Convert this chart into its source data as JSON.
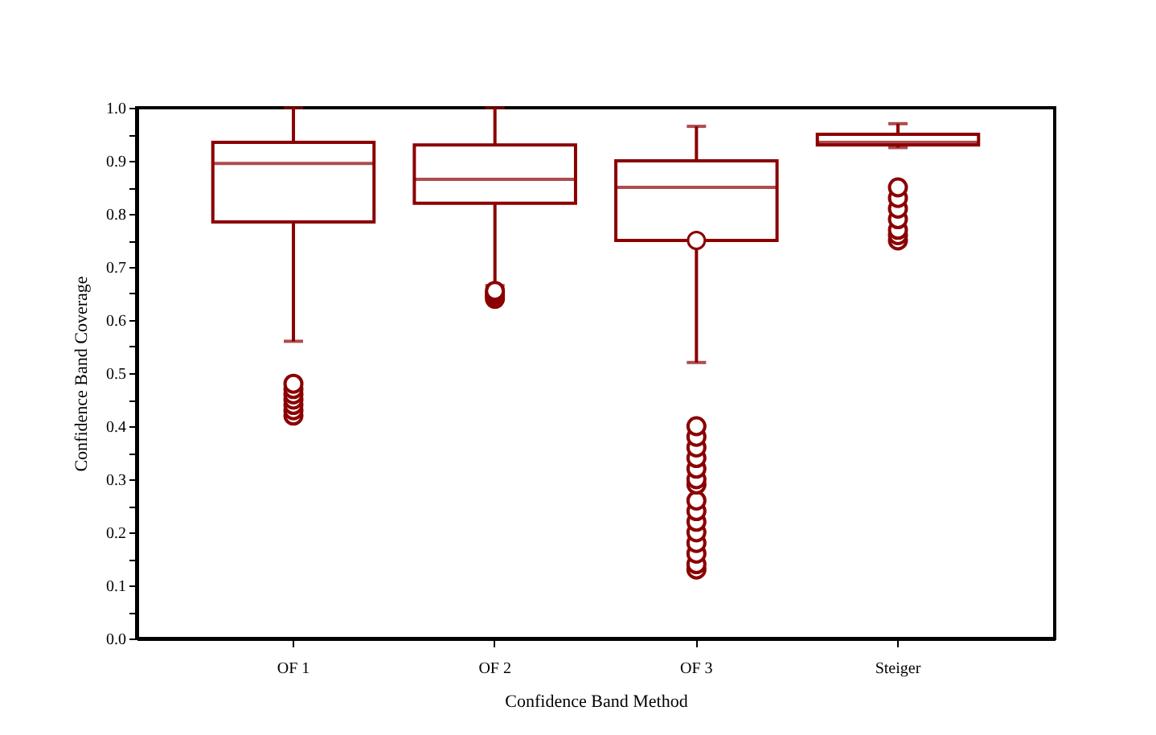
{
  "chart_data": {
    "type": "box",
    "xlabel": "Confidence Band Method",
    "ylabel": "Confidence Band Coverage",
    "categories": [
      "OF 1",
      "OF 2",
      "OF 3",
      "Steiger"
    ],
    "color": "#8b0000",
    "boxes": [
      {
        "low": 0.56,
        "q1": 0.785,
        "median": 0.895,
        "q3": 0.935,
        "high": 1.0,
        "outliers": [
          0.42,
          0.43,
          0.44,
          0.45,
          0.46,
          0.47,
          0.48
        ]
      },
      {
        "low": 0.665,
        "q1": 0.82,
        "median": 0.865,
        "q3": 0.93,
        "high": 1.0,
        "outliers": [
          0.64,
          0.645,
          0.65,
          0.655
        ]
      },
      {
        "low": 0.52,
        "q1": 0.75,
        "median": 0.85,
        "q3": 0.9,
        "high": 0.965,
        "mean": 0.75,
        "outliers": [
          0.13,
          0.14,
          0.16,
          0.18,
          0.2,
          0.22,
          0.24,
          0.26,
          0.29,
          0.3,
          0.32,
          0.34,
          0.36,
          0.38,
          0.4
        ]
      },
      {
        "low": 0.925,
        "q1": 0.93,
        "median": 0.935,
        "q3": 0.95,
        "high": 0.97,
        "outliers": [
          0.75,
          0.76,
          0.77,
          0.79,
          0.81,
          0.83,
          0.85
        ]
      }
    ],
    "ylim": [
      0,
      1
    ],
    "yticks": [
      {
        "value": 0,
        "label": "0.0"
      },
      {
        "value": 0.05,
        "label": null
      },
      0.1,
      {
        "value": 0.15,
        "label": null
      },
      0.2,
      {
        "value": 0.25,
        "label": null
      },
      0.3,
      {
        "value": 0.35,
        "label": null
      },
      0.4,
      {
        "value": 0.45,
        "label": null
      },
      0.5,
      {
        "value": 0.55,
        "label": null
      },
      0.6,
      {
        "value": 0.65,
        "label": null
      },
      0.7,
      {
        "value": 0.75,
        "label": null
      },
      0.8,
      {
        "value": 0.85,
        "label": null
      },
      0.9,
      {
        "value": 0.95,
        "label": null
      },
      {
        "value": 1,
        "label": "1.0"
      }
    ],
    "grid": false
  }
}
